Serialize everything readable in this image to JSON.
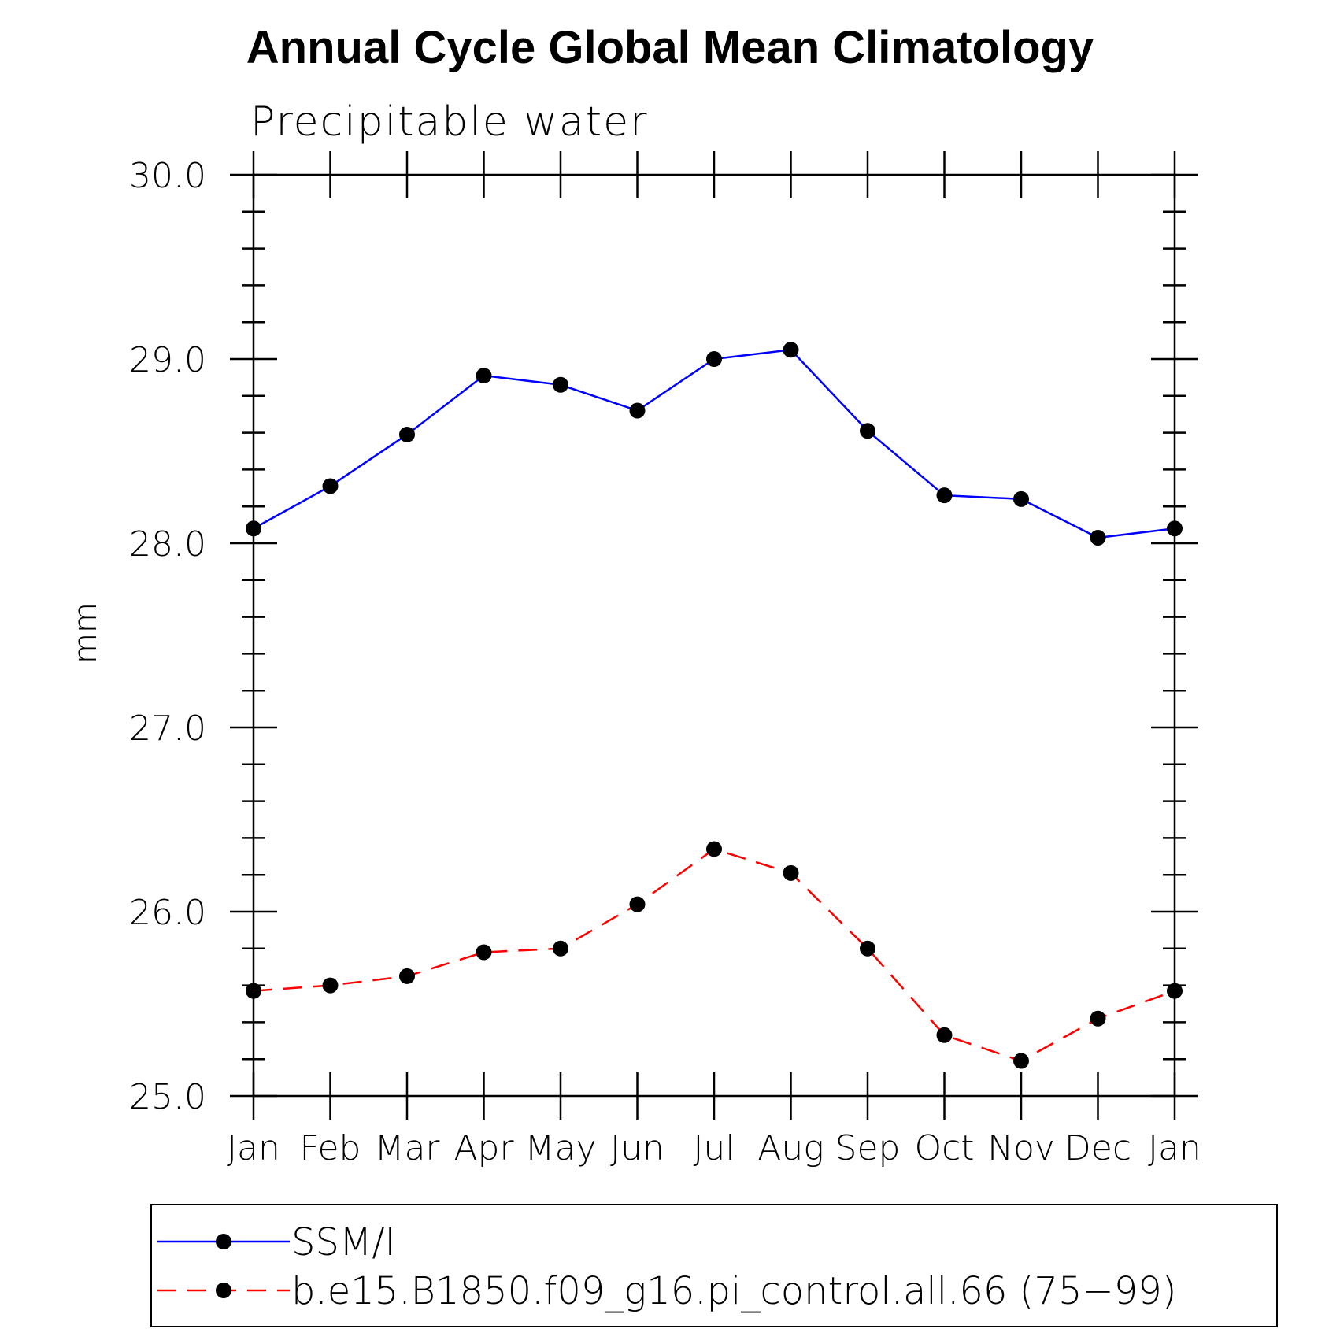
{
  "chart_data": {
    "type": "line",
    "title": "Annual Cycle Global Mean Climatology",
    "subtitle": "Precipitable water",
    "xlabel": "",
    "ylabel": "mm",
    "categories": [
      "Jan",
      "Feb",
      "Mar",
      "Apr",
      "May",
      "Jun",
      "Jul",
      "Aug",
      "Sep",
      "Oct",
      "Nov",
      "Dec",
      "Jan"
    ],
    "ylim": [
      25.0,
      30.0
    ],
    "yticks": [
      "25.0",
      "26.0",
      "27.0",
      "28.0",
      "29.0",
      "30.0"
    ],
    "grid": false,
    "legend_position": "bottom",
    "series": [
      {
        "name": "SSM/I",
        "color": "#0000ff",
        "dash": "solid",
        "marker": "filled-circle",
        "values": [
          28.08,
          28.31,
          28.59,
          28.91,
          28.86,
          28.72,
          29.0,
          29.05,
          28.61,
          28.26,
          28.24,
          28.03,
          28.08
        ]
      },
      {
        "name": "b.e15.B1850.f09_g16.pi_control.all.66 (75−99)",
        "color": "#ff0000",
        "dash": "dashed",
        "marker": "filled-circle",
        "values": [
          25.57,
          25.6,
          25.65,
          25.78,
          25.8,
          26.04,
          26.34,
          26.21,
          25.8,
          25.33,
          25.19,
          25.42,
          25.57
        ]
      }
    ]
  }
}
